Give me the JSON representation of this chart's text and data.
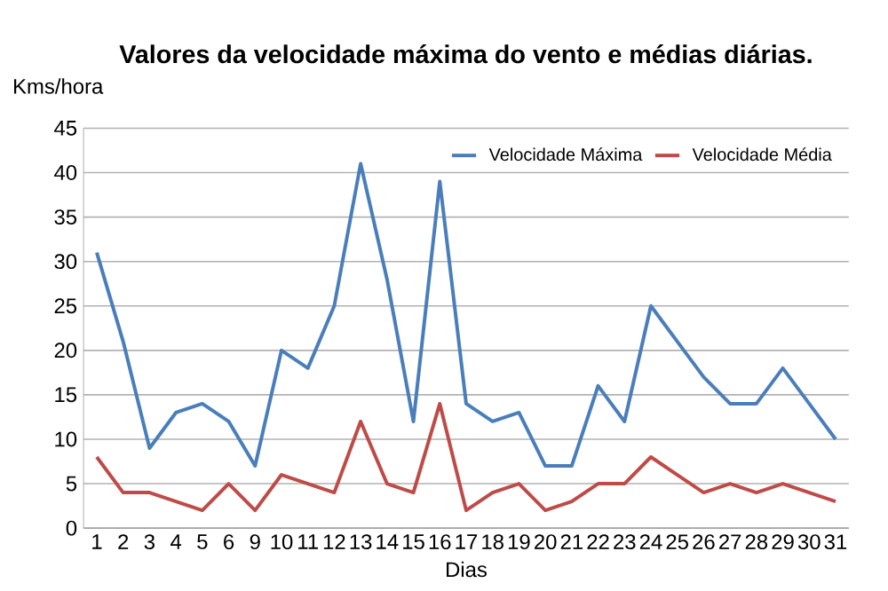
{
  "chart_data": {
    "type": "line",
    "title": "Valores da velocidade máxima do vento e médias diárias.",
    "xlabel": "Dias",
    "ylabel": "Kms/hora",
    "categories": [
      "1",
      "2",
      "3",
      "4",
      "5",
      "6",
      "9",
      "10",
      "11",
      "12",
      "13",
      "14",
      "15",
      "16",
      "17",
      "18",
      "19",
      "20",
      "21",
      "22",
      "23",
      "24",
      "25",
      "26",
      "27",
      "28",
      "29",
      "30",
      "31"
    ],
    "series": [
      {
        "name": "Velocidade Máxima",
        "color": "#4a7ebb",
        "values": [
          31,
          21,
          9,
          13,
          14,
          12,
          7,
          20,
          18,
          25,
          41,
          28,
          12,
          39,
          14,
          12,
          13,
          7,
          7,
          16,
          12,
          25,
          21,
          17,
          14,
          14,
          18,
          14,
          10
        ]
      },
      {
        "name": "Velocidade Média",
        "color": "#be4b48",
        "values": [
          8,
          4,
          4,
          3,
          2,
          5,
          2,
          6,
          5,
          4,
          12,
          5,
          4,
          14,
          2,
          4,
          5,
          2,
          3,
          5,
          5,
          8,
          6,
          4,
          5,
          4,
          5,
          4,
          3
        ]
      }
    ],
    "ylim": [
      0,
      45
    ],
    "yticks": [
      0,
      5,
      10,
      15,
      20,
      25,
      30,
      35,
      40,
      45
    ],
    "grid": "y",
    "legend": "top right",
    "marker": "none",
    "line_style": "solid"
  }
}
